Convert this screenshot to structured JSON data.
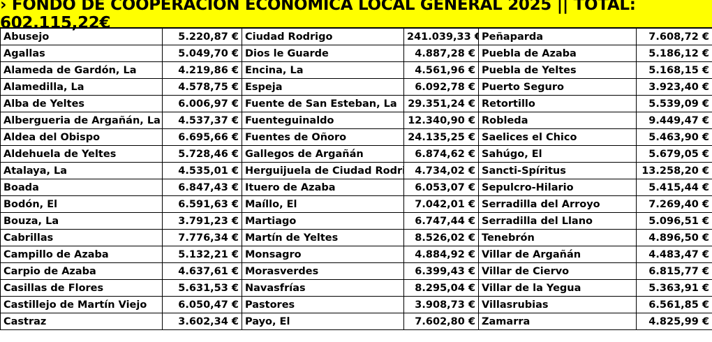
{
  "header": {
    "title": "› FONDO DE COOPERACIÓN ECONÓMICA LOCAL GENERAL 2025 || TOTAL: 602.115,22€"
  },
  "colors": {
    "banner_bg": "#ffff00",
    "text": "#000000",
    "border": "#000000"
  },
  "rows": [
    [
      {
        "n": "Abusejo",
        "v": "5.220,87 €"
      },
      {
        "n": "Ciudad Rodrigo",
        "v": "241.039,33 €"
      },
      {
        "n": "Peñaparda",
        "v": "7.608,72 €"
      }
    ],
    [
      {
        "n": "Agallas",
        "v": "5.049,70 €"
      },
      {
        "n": "Dios le Guarde",
        "v": "4.887,28 €"
      },
      {
        "n": "Puebla de Azaba",
        "v": "5.186,12 €"
      }
    ],
    [
      {
        "n": "Alameda de Gardón, La",
        "v": "4.219,86 €"
      },
      {
        "n": "Encina, La",
        "v": "4.561,96 €"
      },
      {
        "n": "Puebla de Yeltes",
        "v": "5.168,15 €"
      }
    ],
    [
      {
        "n": "Alamedilla, La",
        "v": "4.578,75 €"
      },
      {
        "n": "Espeja",
        "v": "6.092,78 €"
      },
      {
        "n": "Puerto Seguro",
        "v": "3.923,40 €"
      }
    ],
    [
      {
        "n": "Alba de Yeltes",
        "v": "6.006,97 €"
      },
      {
        "n": "Fuente de San Esteban, La",
        "v": "29.351,24 €"
      },
      {
        "n": "Retortillo",
        "v": "5.539,09 €"
      }
    ],
    [
      {
        "n": "Albergueria de Argañán, La",
        "v": "4.537,37 €"
      },
      {
        "n": "Fuenteguinaldo",
        "v": "12.340,90 €"
      },
      {
        "n": "Robleda",
        "v": "9.449,47 €"
      }
    ],
    [
      {
        "n": "Aldea del Obispo",
        "v": "6.695,66 €"
      },
      {
        "n": "Fuentes de Oñoro",
        "v": "24.135,25 €"
      },
      {
        "n": "Saelices el Chico",
        "v": "5.463,90 €"
      }
    ],
    [
      {
        "n": "Aldehuela de Yeltes",
        "v": "5.728,46 €"
      },
      {
        "n": "Gallegos de Argañán",
        "v": "6.874,62 €"
      },
      {
        "n": "Sahúgo, El",
        "v": "5.679,05 €"
      }
    ],
    [
      {
        "n": "Atalaya, La",
        "v": "4.535,01 €"
      },
      {
        "n": "Herguijuela de Ciudad Rodrigo",
        "v": "4.734,02 €"
      },
      {
        "n": "Sancti-Spíritus",
        "v": "13.258,20 €"
      }
    ],
    [
      {
        "n": "Boada",
        "v": "6.847,43 €"
      },
      {
        "n": "Ituero de Azaba",
        "v": "6.053,07 €"
      },
      {
        "n": "Sepulcro-Hilario",
        "v": "5.415,44 €"
      }
    ],
    [
      {
        "n": "Bodón, El",
        "v": "6.591,63 €"
      },
      {
        "n": "Maíllo, El",
        "v": "7.042,01 €"
      },
      {
        "n": "Serradilla del Arroyo",
        "v": "7.269,40 €"
      }
    ],
    [
      {
        "n": "Bouza, La",
        "v": "3.791,23 €"
      },
      {
        "n": "Martiago",
        "v": "6.747,44 €"
      },
      {
        "n": "Serradilla del Llano",
        "v": "5.096,51 €"
      }
    ],
    [
      {
        "n": "Cabrillas",
        "v": "7.776,34 €"
      },
      {
        "n": "Martín de Yeltes",
        "v": "8.526,02 €"
      },
      {
        "n": "Tenebrón",
        "v": "4.896,50 €"
      }
    ],
    [
      {
        "n": "Campillo de Azaba",
        "v": "5.132,21 €"
      },
      {
        "n": "Monsagro",
        "v": "4.884,92 €"
      },
      {
        "n": "Villar de Argañán",
        "v": "4.483,47 €"
      }
    ],
    [
      {
        "n": "Carpio de Azaba",
        "v": "4.637,61 €"
      },
      {
        "n": "Morasverdes",
        "v": "6.399,43 €"
      },
      {
        "n": "Villar de Ciervo",
        "v": "6.815,77 €"
      }
    ],
    [
      {
        "n": "Casillas de Flores",
        "v": "5.631,53 €"
      },
      {
        "n": "Navasfrías",
        "v": "8.295,04 €"
      },
      {
        "n": "Villar de la Yegua",
        "v": "5.363,91 €"
      }
    ],
    [
      {
        "n": "Castillejo de Martín Viejo",
        "v": "6.050,47 €"
      },
      {
        "n": "Pastores",
        "v": "3.908,73 €"
      },
      {
        "n": "Villasrubias",
        "v": "6.561,85 €"
      }
    ],
    [
      {
        "n": "Castraz",
        "v": "3.602,34 €"
      },
      {
        "n": "Payo, El",
        "v": "7.602,80 €"
      },
      {
        "n": "Zamarra",
        "v": "4.825,99 €"
      }
    ]
  ]
}
